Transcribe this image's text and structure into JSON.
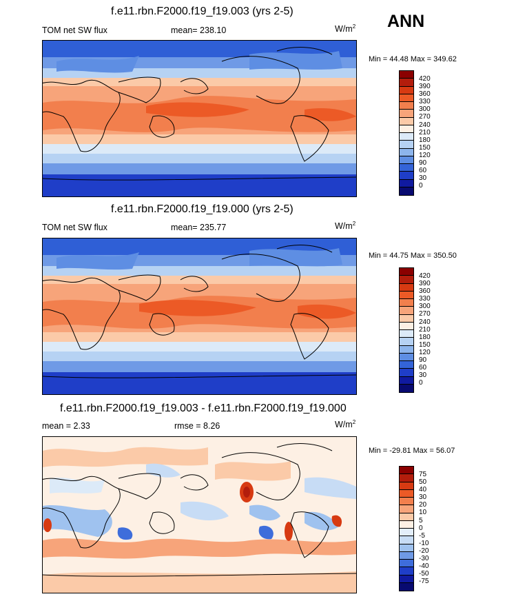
{
  "season": "ANN",
  "panels": [
    {
      "title": "f.e11.rbn.F2000.f19_f19.003 (yrs 2-5)",
      "left_label": "TOM net SW flux",
      "center_label": "mean= 238.10",
      "units": "W/m",
      "units_exp": "2",
      "minmax": "Min =  44.48 Max = 349.62",
      "levels": [
        "420",
        "390",
        "360",
        "330",
        "300",
        "270",
        "240",
        "210",
        "180",
        "150",
        "120",
        "90",
        "60",
        "30",
        "0"
      ],
      "colors": [
        "#8b0000",
        "#b31d0c",
        "#d73a12",
        "#ec5a26",
        "#f27f4d",
        "#f7a47a",
        "#fbcaa8",
        "#fdf0e4",
        "#dceaf8",
        "#b6d2f3",
        "#8db5ec",
        "#5e8ee3",
        "#3464d8",
        "#1f3ec8",
        "#101aa0",
        "#080a70"
      ]
    },
    {
      "title": "f.e11.rbn.F2000.f19_f19.000 (yrs 2-5)",
      "left_label": "TOM net SW flux",
      "center_label": "mean= 235.77",
      "units": "W/m",
      "units_exp": "2",
      "minmax": "Min =  44.75 Max = 350.50",
      "levels": [
        "420",
        "390",
        "360",
        "330",
        "300",
        "270",
        "240",
        "210",
        "180",
        "150",
        "120",
        "90",
        "60",
        "30",
        "0"
      ],
      "colors": [
        "#8b0000",
        "#b31d0c",
        "#d73a12",
        "#ec5a26",
        "#f27f4d",
        "#f7a47a",
        "#fbcaa8",
        "#fdf0e4",
        "#dceaf8",
        "#b6d2f3",
        "#8db5ec",
        "#5e8ee3",
        "#3464d8",
        "#1f3ec8",
        "#101aa0",
        "#080a70"
      ]
    },
    {
      "title": "f.e11.rbn.F2000.f19_f19.003 - f.e11.rbn.F2000.f19_f19.000",
      "left_label": "mean =   2.33",
      "center_label": "rmse =   8.26",
      "units": "W/m",
      "units_exp": "2",
      "minmax": "Min = -29.81 Max =  56.07",
      "levels": [
        "75",
        "50",
        "40",
        "30",
        "20",
        "10",
        "5",
        "0",
        "-5",
        "-10",
        "-20",
        "-30",
        "-40",
        "-50",
        "-75"
      ],
      "colors": [
        "#8b0000",
        "#b31d0c",
        "#d73a12",
        "#ec5a26",
        "#f27f4d",
        "#f7a47a",
        "#fbcaa8",
        "#fdf0e4",
        "#e3eefa",
        "#c7dcf5",
        "#9fc2ef",
        "#6f9ae6",
        "#3e6ddb",
        "#1f3ec8",
        "#101aa0",
        "#080a70"
      ]
    }
  ],
  "chart_data": [
    {
      "type": "heatmap",
      "title": "f.e11.rbn.F2000.f19_f19.003 (yrs 2-5)",
      "variable": "TOM net SW flux",
      "mean": 238.1,
      "min": 44.48,
      "max": 349.62,
      "units": "W/m2",
      "contour_levels": [
        0,
        30,
        60,
        90,
        120,
        150,
        180,
        210,
        240,
        270,
        300,
        330,
        360,
        390,
        420
      ]
    },
    {
      "type": "heatmap",
      "title": "f.e11.rbn.F2000.f19_f19.000 (yrs 2-5)",
      "variable": "TOM net SW flux",
      "mean": 235.77,
      "min": 44.75,
      "max": 350.5,
      "units": "W/m2",
      "contour_levels": [
        0,
        30,
        60,
        90,
        120,
        150,
        180,
        210,
        240,
        270,
        300,
        330,
        360,
        390,
        420
      ]
    },
    {
      "type": "heatmap",
      "title": "f.e11.rbn.F2000.f19_f19.003 - f.e11.rbn.F2000.f19_f19.000",
      "mean": 2.33,
      "rmse": 8.26,
      "min": -29.81,
      "max": 56.07,
      "units": "W/m2",
      "contour_levels": [
        -75,
        -50,
        -40,
        -30,
        -20,
        -10,
        -5,
        0,
        5,
        10,
        20,
        30,
        40,
        50,
        75
      ]
    }
  ]
}
